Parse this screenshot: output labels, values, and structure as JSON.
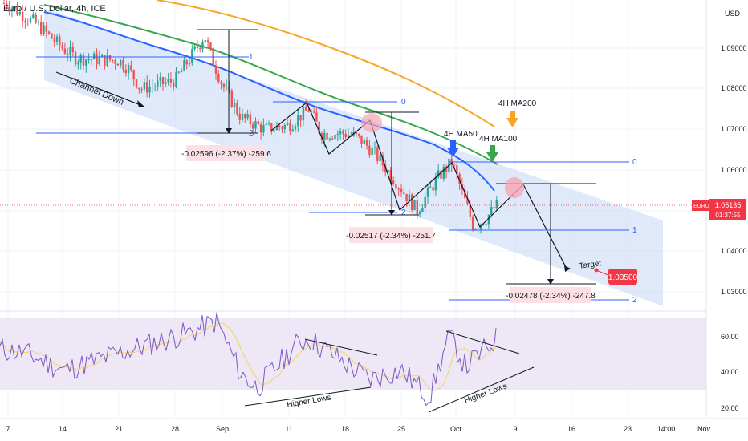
{
  "header": {
    "symbol_title": "Euro / U.S. Dollar, 4h, ICE",
    "currency": "USD"
  },
  "price_scale": {
    "ticks": [
      "1.09000",
      "1.08000",
      "1.07000",
      "1.06000",
      "1.05000",
      "1.04000",
      "1.03000"
    ],
    "current_symbol": "EURUSD",
    "current_price": "1.05135",
    "countdown": "01:37:55"
  },
  "rsi_scale": {
    "ticks": [
      "60.00",
      "40.00",
      "20.00"
    ]
  },
  "time_axis": {
    "ticks": [
      "7",
      "14",
      "21",
      "28",
      "Sep",
      "11",
      "18",
      "25",
      "Oct",
      "9",
      "16",
      "23",
      "14:00",
      "Nov"
    ]
  },
  "annotations": {
    "channel_label": "Channel Down",
    "ma50_label": "4H MA50",
    "ma100_label": "4H MA100",
    "ma200_label": "4H MA200",
    "target_label": "Target",
    "target_price": "1.03500",
    "measure_1": "-0.02596 (-2.37%) -259.6",
    "measure_2": "-0.02517 (-2.34%) -251.7",
    "measure_3": "-0.02478 (-2.34%) -247.8",
    "fib_levels_a": [
      "1",
      "2"
    ],
    "fib_levels_b": [
      "0",
      "2"
    ],
    "fib_levels_c": [
      "0",
      "1",
      "2"
    ],
    "rsi_label_1": "Higher Lows",
    "rsi_label_2": "Higher Lows"
  },
  "colors": {
    "channel_fill": "#c9dbf5",
    "ma50": "#2962ff",
    "ma100": "#3aa64a",
    "ma200": "#f5a623",
    "bull": "#26a69a",
    "bear": "#ef5350",
    "fib": "#2962ff",
    "price_label": "#f23645",
    "rsi": "#7e57c2",
    "rsi_ma": "#f5d76e",
    "rsi_band": "#ede7f6"
  },
  "chart_data": {
    "type": "candlestick",
    "symbol": "EURUSD",
    "timeframe": "4h",
    "ylim": [
      1.024,
      1.1
    ],
    "close_path": [
      [
        "Aug 4",
        1.101
      ],
      [
        "Aug 7",
        1.098
      ],
      [
        "Aug 10",
        1.096
      ],
      [
        "Aug 14",
        1.09
      ],
      [
        "Aug 17",
        1.0875
      ],
      [
        "Aug 21",
        1.087
      ],
      [
        "Aug 23",
        1.085
      ],
      [
        "Aug 25",
        1.08
      ],
      [
        "Aug 28",
        1.082
      ],
      [
        "Aug 30",
        1.093
      ],
      [
        "Aug 31",
        1.087
      ],
      [
        "Sep 1",
        1.081
      ],
      [
        "Sep 5",
        1.073
      ],
      [
        "Sep 8",
        1.07
      ],
      [
        "Sep 11",
        1.071
      ],
      [
        "Sep 13",
        1.075
      ],
      [
        "Sep 15",
        1.069
      ],
      [
        "Sep 18",
        1.069
      ],
      [
        "Sep 20",
        1.068
      ],
      [
        "Sep 22",
        1.065
      ],
      [
        "Sep 25",
        1.058
      ],
      [
        "Sep 27",
        1.05
      ],
      [
        "Sep 29",
        1.058
      ],
      [
        "Oct 2",
        1.062
      ],
      [
        "Oct 3",
        1.046
      ],
      [
        "Oct 5",
        1.048
      ],
      [
        "Oct 6",
        1.0513
      ]
    ],
    "moving_averages": [
      {
        "name": "4H MA50",
        "values": [
          [
            "Aug 4",
            1.1005
          ],
          [
            "Aug 14",
            1.096
          ],
          [
            "Aug 28",
            1.09
          ],
          [
            "Sep 1",
            1.088
          ],
          [
            "Sep 11",
            1.079
          ],
          [
            "Sep 20",
            1.074
          ],
          [
            "Sep 27",
            1.069
          ],
          [
            "Oct 2",
            1.065
          ],
          [
            "Oct 6",
            1.058
          ]
        ]
      },
      {
        "name": "4H MA100",
        "values": [
          [
            "Aug 4",
            1.101
          ],
          [
            "Aug 28",
            1.094
          ],
          [
            "Sep 11",
            1.085
          ],
          [
            "Sep 25",
            1.076
          ],
          [
            "Oct 2",
            1.069
          ],
          [
            "Oct 6",
            1.062
          ]
        ]
      },
      {
        "name": "4H MA200",
        "values": [
          [
            "Aug 4",
            1.103
          ],
          [
            "Aug 28",
            1.1
          ],
          [
            "Sep 11",
            1.094
          ],
          [
            "Sep 25",
            1.085
          ],
          [
            "Oct 6",
            1.072
          ]
        ]
      }
    ],
    "projection": {
      "from": 1.057,
      "to": 1.035,
      "target": 1.035
    },
    "rsi_ylim": [
      15,
      75
    ]
  }
}
